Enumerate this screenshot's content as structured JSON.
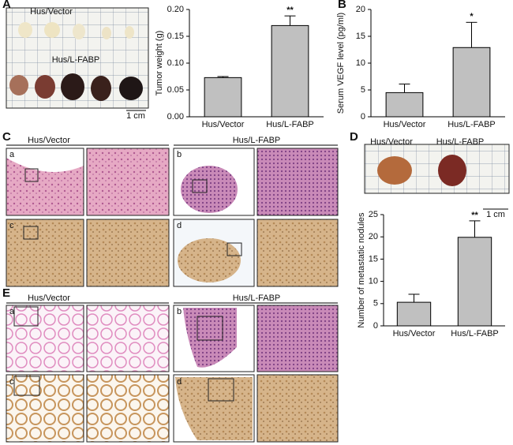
{
  "figure": {
    "panel_letters": [
      "A",
      "B",
      "C",
      "D",
      "E"
    ],
    "A": {
      "groups": [
        "Hus/Vector",
        "Hus/L-FABP"
      ],
      "scale_bar": "1 cm"
    },
    "C": {
      "groups": [
        "Hus/Vector",
        "Hus/L-FABP"
      ],
      "sub_panels": [
        "a",
        "b",
        "c",
        "d"
      ]
    },
    "D": {
      "groups": [
        "Hus/Vector",
        "Hus/L-FABP"
      ],
      "scale_bar": "1 cm"
    },
    "E": {
      "groups": [
        "Hus/Vector",
        "Hus/L-FABP"
      ],
      "sub_panels": [
        "a",
        "b",
        "c",
        "d"
      ]
    }
  },
  "chart_data": [
    {
      "type": "bar",
      "y_label": "Tumor weight (g)",
      "categories": [
        "Hus/Vector",
        "Hus/L-FABP"
      ],
      "values": [
        0.073,
        0.17
      ],
      "errors": [
        0.002,
        0.018
      ],
      "significance": [
        null,
        "**"
      ],
      "color": "#c0c0c0",
      "ylim": [
        0,
        0.2
      ],
      "yticks": [
        {
          "value": 0,
          "label": "0.00"
        },
        {
          "value": 0.05,
          "label": "0.05"
        },
        {
          "value": 0.1,
          "label": "0.10"
        },
        {
          "value": 0.15,
          "label": "0.15"
        },
        {
          "value": 0.2,
          "label": "0.20"
        }
      ]
    },
    {
      "type": "bar",
      "y_label": "Serum VEGF level (pg/ml)",
      "categories": [
        "Hus/Vector",
        "Hus/L-FABP"
      ],
      "values": [
        4.5,
        12.9
      ],
      "errors": [
        1.6,
        4.7
      ],
      "significance": [
        null,
        "*"
      ],
      "color": "#c0c0c0",
      "ylim": [
        0,
        20
      ],
      "yticks": [
        0,
        5,
        10,
        15,
        20
      ]
    },
    {
      "type": "bar",
      "y_label": "Number of metastatic nodules",
      "categories": [
        "Hus/Vector",
        "Hus/L-FABP"
      ],
      "values": [
        5.3,
        19.9
      ],
      "errors": [
        1.8,
        3.7
      ],
      "significance": [
        null,
        "**"
      ],
      "color": "#c0c0c0",
      "ylim": [
        0,
        25
      ],
      "yticks": [
        0,
        5,
        10,
        15,
        20,
        25
      ]
    }
  ]
}
